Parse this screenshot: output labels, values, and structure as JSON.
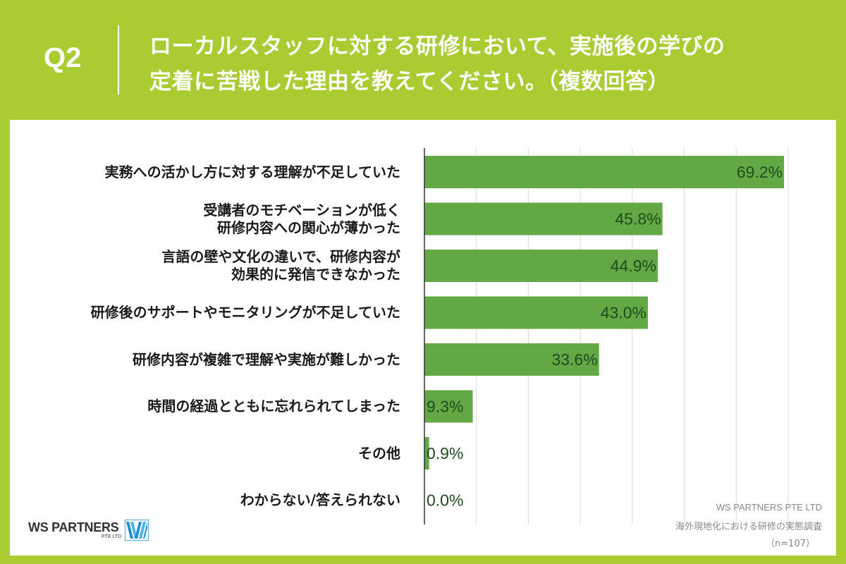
{
  "header": {
    "question_number": "Q2",
    "title_line1": "ローカルスタッフに対する研修において、実施後の学びの",
    "title_line2": "定着に苦戦した理由を教えてください。（複数回答）"
  },
  "chart_data": {
    "type": "bar",
    "orientation": "horizontal",
    "title": "ローカルスタッフに対する研修において、実施後の学びの定着に苦戦した理由を教えてください。（複数回答）",
    "categories": [
      [
        "実務への活かし方に対する理解が不足していた"
      ],
      [
        "受講者のモチベーションが低く",
        "研修内容への関心が薄かった"
      ],
      [
        "言語の壁や文化の違いで、研修内容が",
        "効果的に発信できなかった"
      ],
      [
        "研修後のサポートやモニタリングが不足していた"
      ],
      [
        "研修内容が複雑で理解や実施が難しかった"
      ],
      [
        "時間の経過とともに忘れられてしまった"
      ],
      [
        "その他"
      ],
      [
        "わからない/答えられない"
      ]
    ],
    "values": [
      69.2,
      45.8,
      44.9,
      43.0,
      33.6,
      9.3,
      0.9,
      0.0
    ],
    "value_labels": [
      "69.2%",
      "45.8%",
      "44.9%",
      "43.0%",
      "33.6%",
      "9.3%",
      "0.9%",
      "0.0%"
    ],
    "xlim": [
      0,
      70
    ],
    "grid": true,
    "bar_color": "#62a844",
    "label_color": "#1e4d1e"
  },
  "footer": {
    "logo_text": "WS PARTNERS",
    "logo_sub": "PTE LTD",
    "source_company": "WS PARTNERS PTE LTD",
    "source_survey": "海外現地化における研修の実態調査",
    "sample_size": "（n=107）"
  },
  "colors": {
    "background": "#a9cc33",
    "panel": "#ffffff",
    "bar": "#62a844",
    "logo_blue": "#1e8fd6"
  }
}
